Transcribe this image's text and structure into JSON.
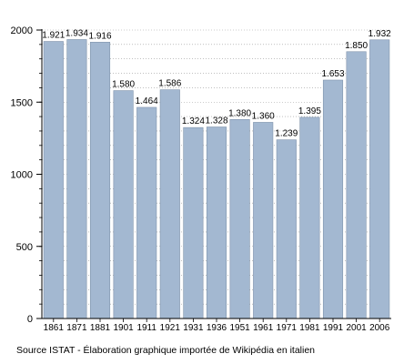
{
  "chart_data": {
    "type": "bar",
    "categories": [
      "1861",
      "1871",
      "1881",
      "1901",
      "1911",
      "1921",
      "1931",
      "1936",
      "1951",
      "1961",
      "1971",
      "1981",
      "1991",
      "2001",
      "2006"
    ],
    "values": [
      1921,
      1934,
      1916,
      1580,
      1464,
      1586,
      1324,
      1328,
      1380,
      1360,
      1239,
      1395,
      1653,
      1850,
      1932
    ],
    "value_labels": [
      "1.921",
      "1.934",
      "1.916",
      "1.580",
      "1.464",
      "1.586",
      "1.324",
      "1.328",
      "1.380",
      "1.360",
      "1.239",
      "1.395",
      "1.653",
      "1.850",
      "1.932"
    ],
    "title": "",
    "xlabel": "",
    "ylabel": "",
    "ylim": [
      0,
      2000
    ],
    "yticks": [
      0,
      500,
      1000,
      1500,
      2000
    ],
    "grid": "horizontal-dotted",
    "legend": "none",
    "bar_color": "#a3b8d1",
    "bar_edge_color": "#7f93ab"
  },
  "source_note": "Source ISTAT - Élaboration graphique importée de Wikipédia en italien"
}
